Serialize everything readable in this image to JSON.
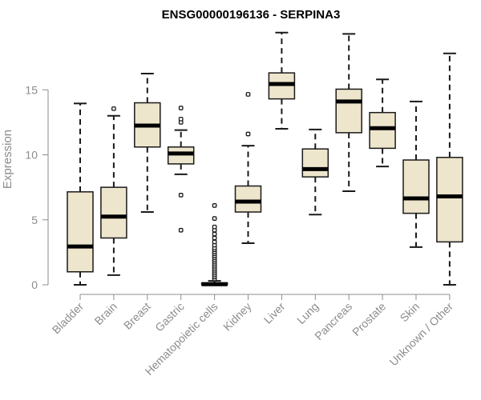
{
  "chart_data": {
    "type": "boxplot",
    "title": "ENSG00000196136 - SERPINA3",
    "xlabel": "",
    "ylabel": "Expression",
    "ylim": [
      0,
      19.5
    ],
    "yticks": [
      0,
      5,
      10,
      15
    ],
    "grid": false,
    "colors": {
      "box_fill": "#ede5cc",
      "box_stroke": "#1a1a1a",
      "median": "#000000",
      "axis": "#8c8c8c"
    },
    "categories": [
      "Bladder",
      "Brain",
      "Breast",
      "Gastric",
      "Hematopoietic cells",
      "Kidney",
      "Liver",
      "Lung",
      "Pancreas",
      "Prostate",
      "Skin",
      "Unknown / Other"
    ],
    "boxes": [
      {
        "min": 0.0,
        "q1": 1.0,
        "median": 2.95,
        "q3": 7.15,
        "max": 13.95,
        "outliers": []
      },
      {
        "min": 0.75,
        "q1": 3.6,
        "median": 5.25,
        "q3": 7.5,
        "max": 13.0,
        "outliers": [
          13.55
        ]
      },
      {
        "min": 5.6,
        "q1": 10.6,
        "median": 12.25,
        "q3": 14.0,
        "max": 16.25,
        "outliers": []
      },
      {
        "min": 8.5,
        "q1": 9.3,
        "median": 10.1,
        "q3": 10.6,
        "max": 11.9,
        "outliers": [
          4.2,
          6.9,
          12.5,
          12.75,
          13.6
        ]
      },
      {
        "min": 0.0,
        "q1": 0.0,
        "median": 0.05,
        "q3": 0.15,
        "max": 0.3,
        "outliers": [
          0.45,
          0.6,
          0.75,
          0.9,
          1.05,
          1.2,
          1.35,
          1.5,
          1.65,
          1.8,
          1.95,
          2.1,
          2.25,
          2.4,
          2.55,
          2.7,
          2.85,
          3.05,
          3.3,
          3.6,
          3.9,
          4.2,
          4.45,
          5.1,
          6.1
        ]
      },
      {
        "min": 3.2,
        "q1": 5.6,
        "median": 6.4,
        "q3": 7.6,
        "max": 10.7,
        "outliers": [
          11.6,
          14.65
        ]
      },
      {
        "min": 12.0,
        "q1": 14.3,
        "median": 15.45,
        "q3": 16.3,
        "max": 19.4,
        "outliers": []
      },
      {
        "min": 5.4,
        "q1": 8.3,
        "median": 8.9,
        "q3": 10.45,
        "max": 11.95,
        "outliers": []
      },
      {
        "min": 7.2,
        "q1": 11.7,
        "median": 14.1,
        "q3": 15.05,
        "max": 19.3,
        "outliers": []
      },
      {
        "min": 9.1,
        "q1": 10.5,
        "median": 12.05,
        "q3": 13.25,
        "max": 15.8,
        "outliers": []
      },
      {
        "min": 2.9,
        "q1": 5.5,
        "median": 6.65,
        "q3": 9.6,
        "max": 14.1,
        "outliers": []
      },
      {
        "min": 0.0,
        "q1": 3.3,
        "median": 6.8,
        "q3": 9.8,
        "max": 17.8,
        "outliers": []
      }
    ]
  }
}
